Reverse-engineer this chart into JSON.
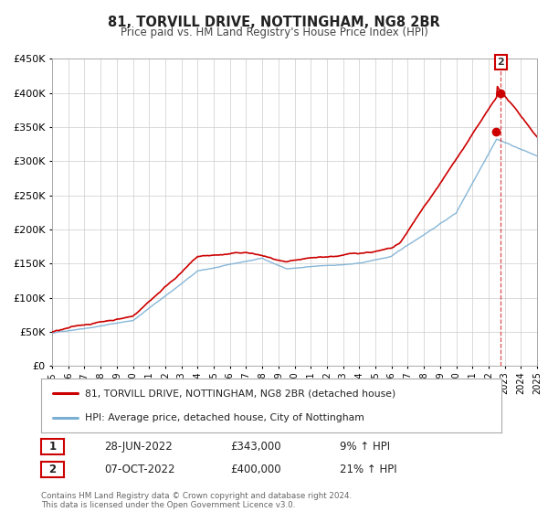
{
  "title": "81, TORVILL DRIVE, NOTTINGHAM, NG8 2BR",
  "subtitle": "Price paid vs. HM Land Registry's House Price Index (HPI)",
  "legend_entry1": "81, TORVILL DRIVE, NOTTINGHAM, NG8 2BR (detached house)",
  "legend_entry2": "HPI: Average price, detached house, City of Nottingham",
  "sale1_date": "28-JUN-2022",
  "sale1_price": 343000,
  "sale1_pct": "9% ↑ HPI",
  "sale2_date": "07-OCT-2022",
  "sale2_price": 400000,
  "sale2_pct": "21% ↑ HPI",
  "footer": "Contains HM Land Registry data © Crown copyright and database right 2024.\nThis data is licensed under the Open Government Licence v3.0.",
  "red_color": "#cc0000",
  "blue_color": "#7aafd4",
  "grid_color": "#cccccc",
  "background_color": "#ffffff",
  "ylim": [
    0,
    450000
  ],
  "xlim_start": 1995,
  "xlim_end": 2025,
  "sale1_year": 2022.458,
  "sale2_year": 2022.75
}
